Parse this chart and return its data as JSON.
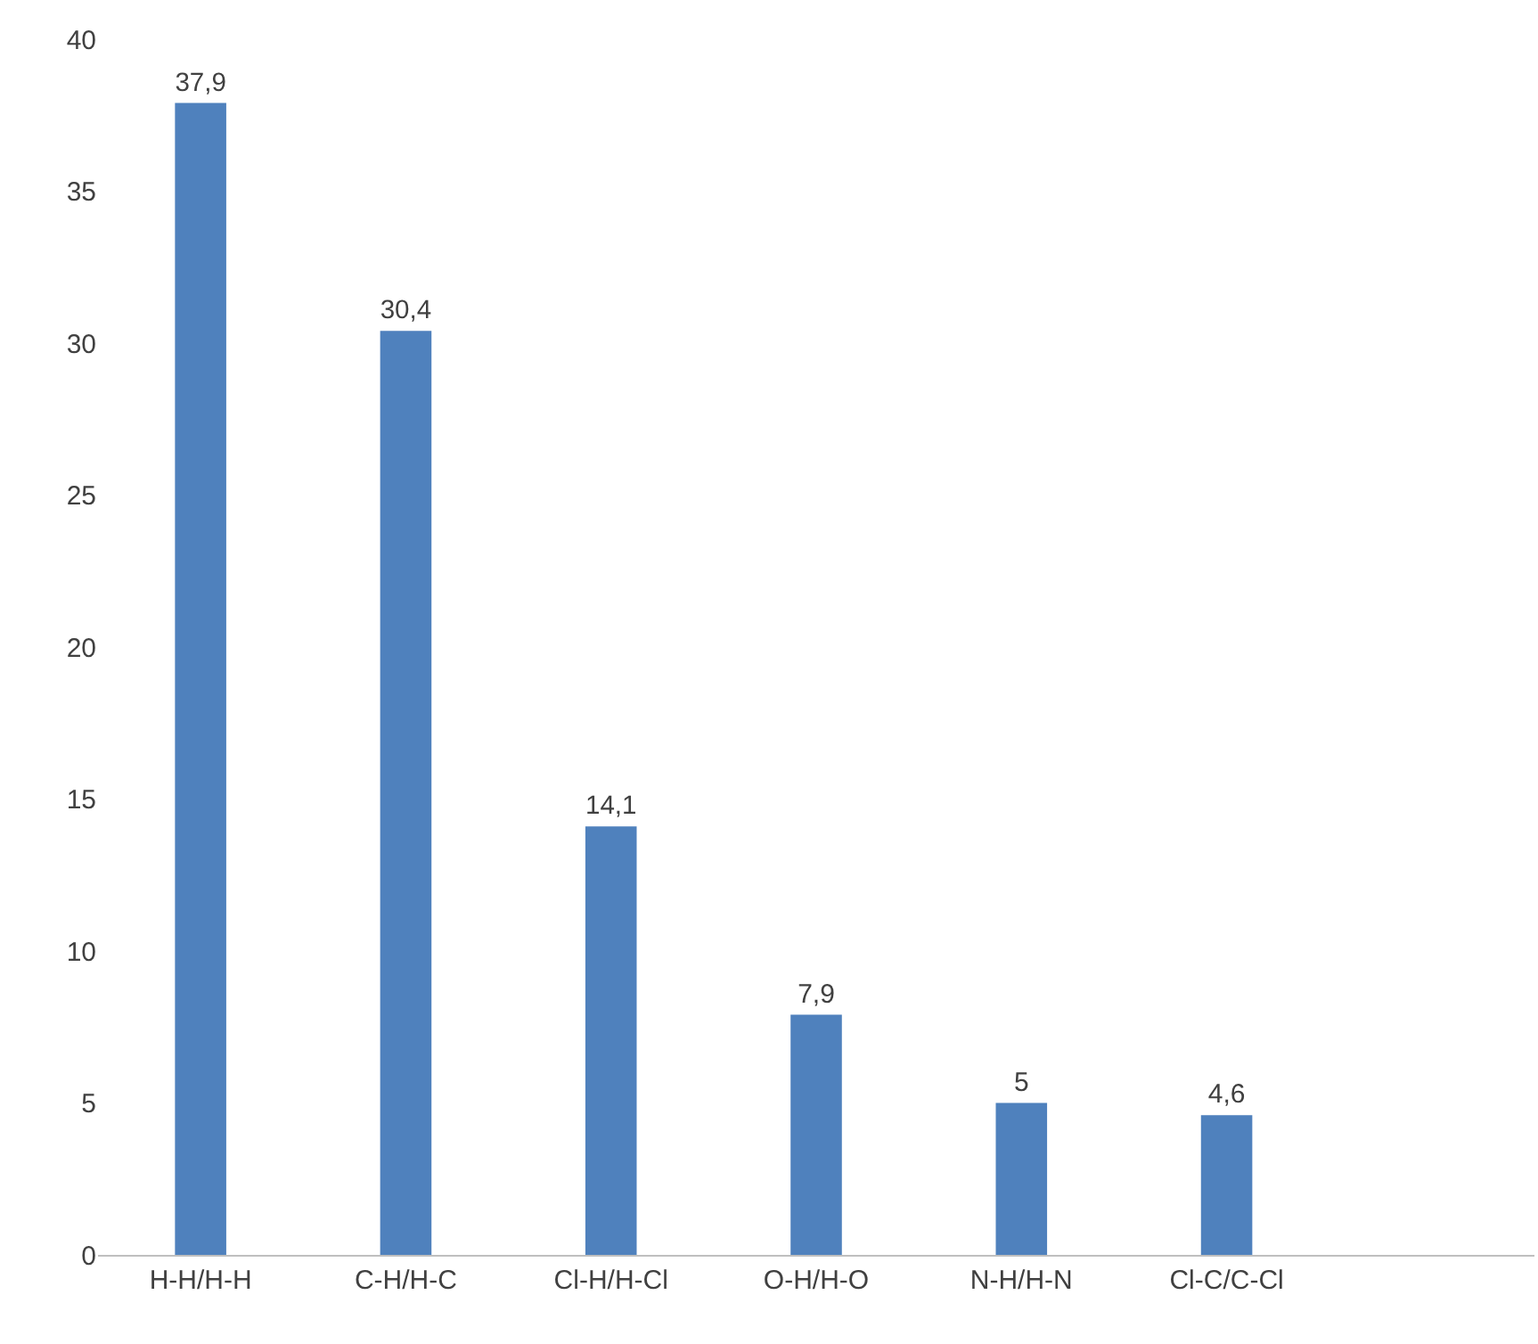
{
  "chart_data": {
    "type": "bar",
    "categories": [
      "H-H/H-H",
      "C-H/H-C",
      "Cl-H/H-Cl",
      "O-H/H-O",
      "N-H/H-N",
      "Cl-C/C-Cl"
    ],
    "values": [
      37.9,
      30.4,
      14.1,
      7.9,
      5,
      4.6
    ],
    "value_labels": [
      "37,9",
      "30,4",
      "14,1",
      "7,9",
      "5",
      "4,6"
    ],
    "color": "#4f81bd",
    "ylim": [
      0,
      40
    ],
    "yticks": [
      0,
      5,
      10,
      15,
      20,
      25,
      30,
      35,
      40
    ]
  }
}
